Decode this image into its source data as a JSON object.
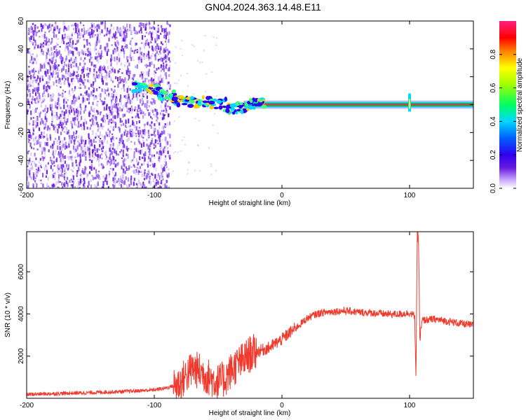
{
  "title": "GN04.2024.363.14.48.E11",
  "colors": {
    "spectrum_scatter": "#6a1ee0",
    "snr_line": "#f03a2e",
    "frame": "#000000"
  },
  "chart_data": [
    {
      "type": "heatmap",
      "title": "GN04.2024.363.14.48.E11",
      "xlabel": "Height of straight line (km)",
      "ylabel": "Frequency (Hz)",
      "xlim": [
        -200,
        150
      ],
      "ylim": [
        -60,
        60
      ],
      "x_ticks": [
        "-200",
        "-100",
        "0",
        "100"
      ],
      "y_ticks": [
        "60",
        "40",
        "20",
        "0",
        "-20",
        "-40",
        "-60"
      ],
      "colorbar": {
        "label": "Normalized spectral amplitude",
        "range": [
          0,
          1
        ],
        "ticks": [
          "0.0",
          "0.2",
          "0.4",
          "0.6",
          "0.8"
        ],
        "colormap": [
          "#ffffff",
          "#a06cff",
          "#3a00e0",
          "#0060ff",
          "#00d8ff",
          "#00ff60",
          "#a0ff00",
          "#ffff00",
          "#ff8000",
          "#ff0000",
          "#ff2080"
        ]
      },
      "features": [
        {
          "name": "noise",
          "x_range": [
            -200,
            -88
          ],
          "freq_range": [
            -60,
            60
          ],
          "amplitude": 0.15
        },
        {
          "name": "transition",
          "points": [
            [
              -110,
              13
            ],
            [
              -100,
              11
            ],
            [
              -90,
              6
            ],
            [
              -80,
              3
            ],
            [
              -70,
              2
            ],
            [
              -60,
              2
            ],
            [
              -50,
              1
            ],
            [
              -40,
              -3
            ],
            [
              -30,
              -2
            ],
            [
              -20,
              0
            ]
          ]
        },
        {
          "name": "carrier",
          "x_range": [
            -30,
            150
          ],
          "freq": 0,
          "amplitude": 1.0
        },
        {
          "name": "spike",
          "x": 100,
          "freq_range": [
            -5,
            8
          ]
        }
      ]
    },
    {
      "type": "line",
      "xlabel": "Height of straight line (km)",
      "ylabel": "SNR (10 * v/v)",
      "xlim": [
        -200,
        150
      ],
      "ylim": [
        0,
        7900
      ],
      "x_ticks": [
        "-200",
        "-100",
        "0",
        "100"
      ],
      "y_ticks": [
        "2000",
        "4000",
        "6000"
      ],
      "series": [
        {
          "x": [
            -200,
            -180,
            -160,
            -140,
            -120,
            -100,
            -90,
            -80,
            -75,
            -70,
            -65,
            -60,
            -55,
            -50,
            -45,
            -40,
            -35,
            -30,
            -25,
            -20,
            -15,
            -10,
            -5,
            0,
            5,
            10,
            15,
            20,
            25,
            30,
            40,
            50,
            60,
            70,
            80,
            90,
            100,
            104,
            105,
            106,
            107,
            108,
            110,
            120,
            130,
            140,
            150
          ],
          "y": [
            180,
            220,
            250,
            290,
            330,
            400,
            500,
            700,
            1100,
            1400,
            1300,
            1100,
            900,
            750,
            900,
            1300,
            1600,
            1800,
            2100,
            2200,
            2300,
            2400,
            2600,
            2800,
            3050,
            3300,
            3550,
            3800,
            3950,
            4050,
            4120,
            4150,
            4080,
            4050,
            4000,
            3980,
            4050,
            3900,
            1000,
            7600,
            7700,
            2800,
            3700,
            3750,
            3650,
            3550,
            3450
          ]
        }
      ]
    }
  ]
}
